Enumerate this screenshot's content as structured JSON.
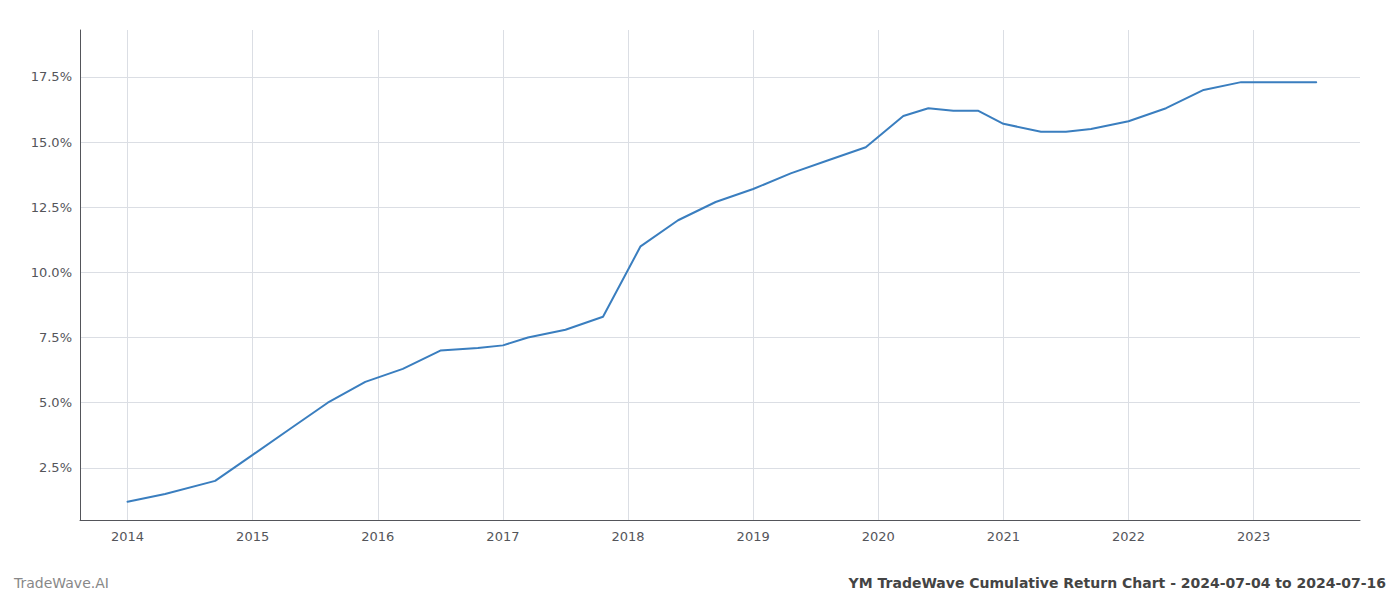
{
  "chart_data": {
    "type": "line",
    "x": [
      2014.0,
      2014.3,
      2014.7,
      2015.0,
      2015.3,
      2015.6,
      2015.9,
      2016.2,
      2016.5,
      2016.8,
      2017.0,
      2017.2,
      2017.5,
      2017.8,
      2018.1,
      2018.4,
      2018.7,
      2019.0,
      2019.3,
      2019.6,
      2019.9,
      2020.2,
      2020.4,
      2020.6,
      2020.8,
      2021.0,
      2021.3,
      2021.5,
      2021.7,
      2022.0,
      2022.3,
      2022.6,
      2022.9,
      2023.2,
      2023.5
    ],
    "values": [
      0.012,
      0.015,
      0.02,
      0.03,
      0.04,
      0.05,
      0.058,
      0.063,
      0.07,
      0.071,
      0.072,
      0.075,
      0.078,
      0.083,
      0.11,
      0.12,
      0.127,
      0.132,
      0.138,
      0.143,
      0.148,
      0.16,
      0.163,
      0.162,
      0.162,
      0.157,
      0.154,
      0.154,
      0.155,
      0.158,
      0.163,
      0.17,
      0.173,
      0.173,
      0.173
    ],
    "color": "#3a7ebf",
    "xlim": [
      2013.62,
      2023.85
    ],
    "xticks": [
      2014,
      2015,
      2016,
      2017,
      2018,
      2019,
      2020,
      2021,
      2022,
      2023
    ],
    "ylim": [
      0.005,
      0.193
    ],
    "yticks": [
      {
        "value": 0.025,
        "label": "2.5%"
      },
      {
        "value": 0.05,
        "label": "5.0%"
      },
      {
        "value": 0.075,
        "label": "7.5%"
      },
      {
        "value": 0.1,
        "label": "10.0%"
      },
      {
        "value": 0.125,
        "label": "12.5%"
      },
      {
        "value": 0.15,
        "label": "15.0%"
      },
      {
        "value": 0.175,
        "label": "17.5%"
      }
    ],
    "grid": true,
    "annotations": [
      "TradeWave.AI",
      "YM TradeWave Cumulative Return Chart - 2024-07-04 to 2024-07-16"
    ]
  }
}
